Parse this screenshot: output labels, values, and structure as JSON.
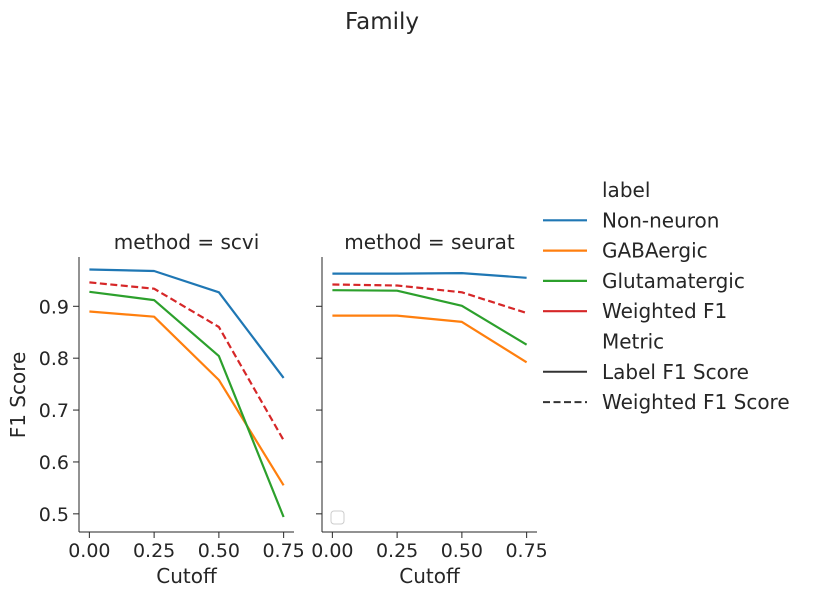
{
  "chart_data": {
    "type": "line",
    "title": "Family",
    "x": [
      0.0,
      0.25,
      0.5,
      0.75
    ],
    "xlim": [
      -0.04,
      0.79
    ],
    "ylim": [
      0.465,
      0.995
    ],
    "xticks": [
      "0.00",
      "0.25",
      "0.50",
      "0.75"
    ],
    "yticks": [
      "0.5",
      "0.6",
      "0.7",
      "0.8",
      "0.9"
    ],
    "ytick_values": [
      0.5,
      0.6,
      0.7,
      0.8,
      0.9
    ],
    "xtick_values": [
      0.0,
      0.25,
      0.5,
      0.75
    ],
    "xlabel": "Cutoff",
    "ylabel": "F1 Score",
    "legend": {
      "placement": "right",
      "label_title": "label",
      "metric_title": "Metric",
      "labels": [
        {
          "name": "Non-neuron",
          "color": "#1f77b4"
        },
        {
          "name": "GABAergic",
          "color": "#ff7f0e"
        },
        {
          "name": "Glutamatergic",
          "color": "#2ca02c"
        },
        {
          "name": "Weighted F1",
          "color": "#d62728"
        }
      ],
      "metrics": [
        {
          "name": "Label F1 Score",
          "style": "solid"
        },
        {
          "name": "Weighted F1 Score",
          "style": "dashed"
        }
      ]
    },
    "panels": [
      {
        "title": "method = scvi",
        "series": [
          {
            "name": "Non-neuron",
            "color": "#1f77b4",
            "style": "solid",
            "values": [
              0.971,
              0.968,
              0.927,
              0.762
            ]
          },
          {
            "name": "GABAergic",
            "color": "#ff7f0e",
            "style": "solid",
            "values": [
              0.89,
              0.88,
              0.758,
              0.555
            ]
          },
          {
            "name": "Glutamatergic",
            "color": "#2ca02c",
            "style": "solid",
            "values": [
              0.928,
              0.912,
              0.804,
              0.494
            ]
          },
          {
            "name": "Weighted F1",
            "color": "#d62728",
            "style": "dashed",
            "values": [
              0.946,
              0.934,
              0.86,
              0.642
            ]
          }
        ]
      },
      {
        "title": "method = seurat",
        "series": [
          {
            "name": "Non-neuron",
            "color": "#1f77b4",
            "style": "solid",
            "values": [
              0.963,
              0.963,
              0.964,
              0.955
            ]
          },
          {
            "name": "GABAergic",
            "color": "#ff7f0e",
            "style": "solid",
            "values": [
              0.882,
              0.882,
              0.87,
              0.792
            ]
          },
          {
            "name": "Glutamatergic",
            "color": "#2ca02c",
            "style": "solid",
            "values": [
              0.931,
              0.93,
              0.901,
              0.826
            ]
          },
          {
            "name": "Weighted F1",
            "color": "#d62728",
            "style": "dashed",
            "values": [
              0.942,
              0.94,
              0.927,
              0.887
            ]
          }
        ]
      }
    ]
  }
}
